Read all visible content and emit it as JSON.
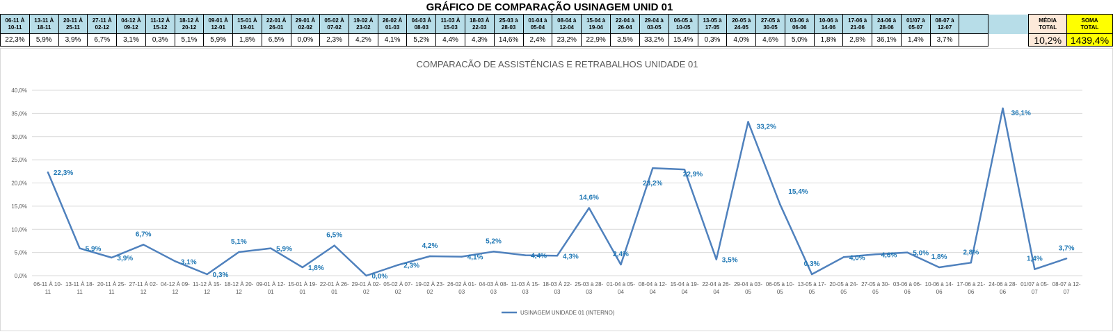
{
  "header": {
    "title": "GRÁFICO DE COMPARAÇÃO USINAGEM UNID 01",
    "periods": [
      [
        "06-11 À",
        "10-11"
      ],
      [
        "13-11 À",
        "18-11"
      ],
      [
        "20-11 À",
        "25-11"
      ],
      [
        "27-11 À",
        "02-12"
      ],
      [
        "04-12 À",
        "09-12"
      ],
      [
        "11-12 À",
        "15-12"
      ],
      [
        "18-12 À",
        "20-12"
      ],
      [
        "09-01 À",
        "12-01"
      ],
      [
        "15-01 À",
        "19-01"
      ],
      [
        "22-01 À",
        "26-01"
      ],
      [
        "29-01 À",
        "02-02"
      ],
      [
        "05-02 À",
        "07-02"
      ],
      [
        "19-02 À",
        "23-02"
      ],
      [
        "26-02 À",
        "01-03"
      ],
      [
        "04-03 À",
        "08-03"
      ],
      [
        "11-03 À",
        "15-03"
      ],
      [
        "18-03 À",
        "22-03"
      ],
      [
        "25-03 à",
        "28-03"
      ],
      [
        "01-04 à",
        "05-04"
      ],
      [
        "08-04 à",
        "12-04"
      ],
      [
        "15-04 à",
        "19-04"
      ],
      [
        "22-04 à",
        "26-04"
      ],
      [
        "29-04 à",
        "03-05"
      ],
      [
        "06-05 à",
        "10-05"
      ],
      [
        "13-05 à",
        "17-05"
      ],
      [
        "20-05 à",
        "24-05"
      ],
      [
        "27-05 à",
        "30-05"
      ],
      [
        "03-06 à",
        "06-06"
      ],
      [
        "10-06 à",
        "14-06"
      ],
      [
        "17-06 à",
        "21-06"
      ],
      [
        "24-06 à",
        "28-06"
      ],
      [
        "01/07 à",
        "05-07"
      ],
      [
        "08-07 à",
        "12-07"
      ]
    ],
    "values": [
      "22,3%",
      "5,9%",
      "3,9%",
      "6,7%",
      "3,1%",
      "0,3%",
      "5,1%",
      "5,9%",
      "1,8%",
      "6,5%",
      "0,0%",
      "2,3%",
      "4,2%",
      "4,1%",
      "5,2%",
      "4,4%",
      "4,3%",
      "14,6%",
      "2,4%",
      "23,2%",
      "22,9%",
      "3,5%",
      "33,2%",
      "15,4%",
      "0,3%",
      "4,0%",
      "4,6%",
      "5,0%",
      "1,8%",
      "2,8%",
      "36,1%",
      "1,4%",
      "3,7%"
    ],
    "media_label": [
      "MÉDIA",
      "TOTAL"
    ],
    "media_value": "10,2%",
    "soma_label": [
      "SOMA",
      "TOTAL"
    ],
    "soma_value": "1439,4%"
  },
  "colors": {
    "line": "#4f81bd",
    "label": "#1f77b4",
    "header_bg": "#b7dde8",
    "media_bg": "#fde9d9",
    "soma_bg": "#ffff00"
  },
  "chart_data": {
    "type": "line",
    "title": "COMPARACÃO DE ASSISTÊNCIAS E RETRABALHOS UNIDADE 01",
    "xlabel": "",
    "ylabel": "",
    "ylim": [
      0,
      40
    ],
    "yticks": [
      "0,0%",
      "5,0%",
      "10,0%",
      "15,0%",
      "20,0%",
      "25,0%",
      "30,0%",
      "35,0%",
      "40,0%"
    ],
    "grid": true,
    "legend_position": "bottom",
    "categories": [
      [
        "06-11 À 10-",
        "11"
      ],
      [
        "13-11 À 18-",
        "11"
      ],
      [
        "20-11 À 25-",
        "11"
      ],
      [
        "27-11 À 02-",
        "12"
      ],
      [
        "04-12 À 09-",
        "12"
      ],
      [
        "11-12 À 15-",
        "12"
      ],
      [
        "18-12 À 20-",
        "12"
      ],
      [
        "09-01 À 12-",
        "01"
      ],
      [
        "15-01 À 19-",
        "01"
      ],
      [
        "22-01 À 26-",
        "01"
      ],
      [
        "29-01 À 02-",
        "02"
      ],
      [
        "05-02 À 07-",
        "02"
      ],
      [
        "19-02 À 23-",
        "02"
      ],
      [
        "26-02 À 01-",
        "03"
      ],
      [
        "04-03 À 08-",
        "03"
      ],
      [
        "11-03 À 15-",
        "03"
      ],
      [
        "18-03 À 22-",
        "03"
      ],
      [
        "25-03 à 28-",
        "03"
      ],
      [
        "01-04 à 05-",
        "04"
      ],
      [
        "08-04 à 12-",
        "04"
      ],
      [
        "15-04 à 19-",
        "04"
      ],
      [
        "22-04 à 26-",
        "04"
      ],
      [
        "29-04 à 03-",
        "05"
      ],
      [
        "06-05 à 10-",
        "05"
      ],
      [
        "13-05 à 17-",
        "05"
      ],
      [
        "20-05 à 24-",
        "05"
      ],
      [
        "27-05 à 30-",
        "05"
      ],
      [
        "03-06 à 06-",
        "06"
      ],
      [
        "10-06 à 14-",
        "06"
      ],
      [
        "17-06 à 21-",
        "06"
      ],
      [
        "24-06 à 28-",
        "06"
      ],
      [
        "01/07 à 05-",
        "07"
      ],
      [
        "08-07 à 12-",
        "07"
      ]
    ],
    "series": [
      {
        "name": "USINAGEM UNIDADE 01 (INTERNO)",
        "values": [
          22.3,
          5.9,
          3.9,
          6.7,
          3.1,
          0.3,
          5.1,
          5.9,
          1.8,
          6.5,
          0.0,
          2.3,
          4.2,
          4.1,
          5.2,
          4.4,
          4.3,
          14.6,
          2.4,
          23.2,
          22.9,
          3.5,
          33.2,
          15.4,
          0.3,
          4.0,
          4.6,
          5.0,
          1.8,
          2.8,
          36.1,
          1.4,
          3.7
        ],
        "labels": [
          "22,3%",
          "5,9%",
          "3,9%",
          "6,7%",
          "3,1%",
          "0,3%",
          "5,1%",
          "5,9%",
          "1,8%",
          "6,5%",
          "0,0%",
          "2,3%",
          "4,2%",
          "4,1%",
          "5,2%",
          "4,4%",
          "4,3%",
          "14,6%",
          "2,4%",
          "23,2%",
          "22,9%",
          "3,5%",
          "33,2%",
          "15,4%",
          "0,3%",
          "4,0%",
          "4,6%",
          "5,0%",
          "1,8%",
          "2,8%",
          "36,1%",
          "1,4%",
          "3,7%"
        ]
      }
    ]
  }
}
